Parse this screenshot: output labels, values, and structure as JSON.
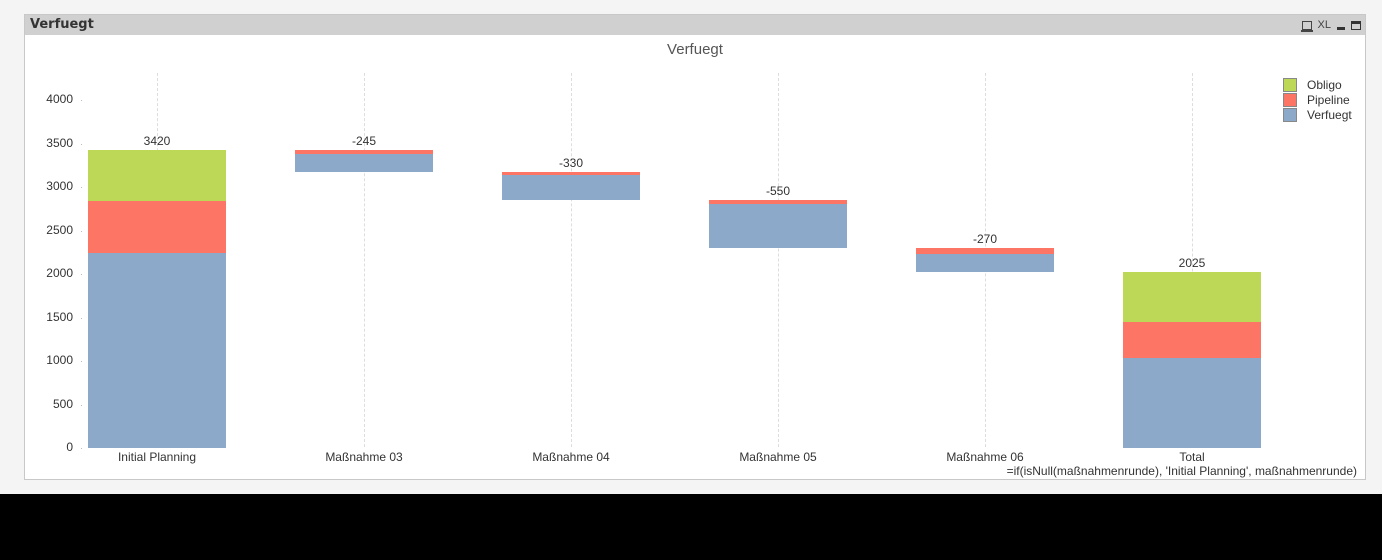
{
  "window": {
    "caption_title": "Verfuegt",
    "icons": [
      {
        "name": "print-icon",
        "label": ""
      },
      {
        "name": "excel-export-icon",
        "label": "XL"
      },
      {
        "name": "minimize-icon",
        "label": ""
      },
      {
        "name": "maximize-icon",
        "label": ""
      }
    ]
  },
  "colors": {
    "Obligo": "#bcd856",
    "Pipeline": "#fd7565",
    "Verfuegt": "#8da9c9"
  },
  "chart_data": {
    "type": "bar",
    "subtype": "stacked waterfall",
    "title": "Verfuegt",
    "xlabel": "=if(isNull(maßnahmenrunde), 'Initial Planning', maßnahmenrunde)",
    "ylabel": "",
    "ylim": [
      0,
      4000
    ],
    "yticks": [
      0,
      500,
      1000,
      1500,
      2000,
      2500,
      3000,
      3500,
      4000
    ],
    "grid": {
      "vertical": true,
      "horizontal": false
    },
    "legend_position": "top-right",
    "categories": [
      "Initial Planning",
      "Maßnahme 03",
      "Maßnahme 04",
      "Maßnahme 05",
      "Maßnahme 06",
      "Total"
    ],
    "data_labels": [
      "3420",
      "-245",
      "-330",
      "-550",
      "-270",
      "2025"
    ],
    "bases": [
      0,
      3175,
      2845,
      2295,
      2025,
      0
    ],
    "series": [
      {
        "name": "Verfuegt",
        "values": [
          2240,
          200,
          295,
          505,
          200,
          1035
        ]
      },
      {
        "name": "Pipeline",
        "values": [
          600,
          45,
          35,
          45,
          70,
          415
        ]
      },
      {
        "name": "Obligo",
        "values": [
          580,
          0,
          0,
          0,
          0,
          575
        ]
      }
    ],
    "legend": [
      "Obligo",
      "Pipeline",
      "Verfuegt"
    ]
  }
}
